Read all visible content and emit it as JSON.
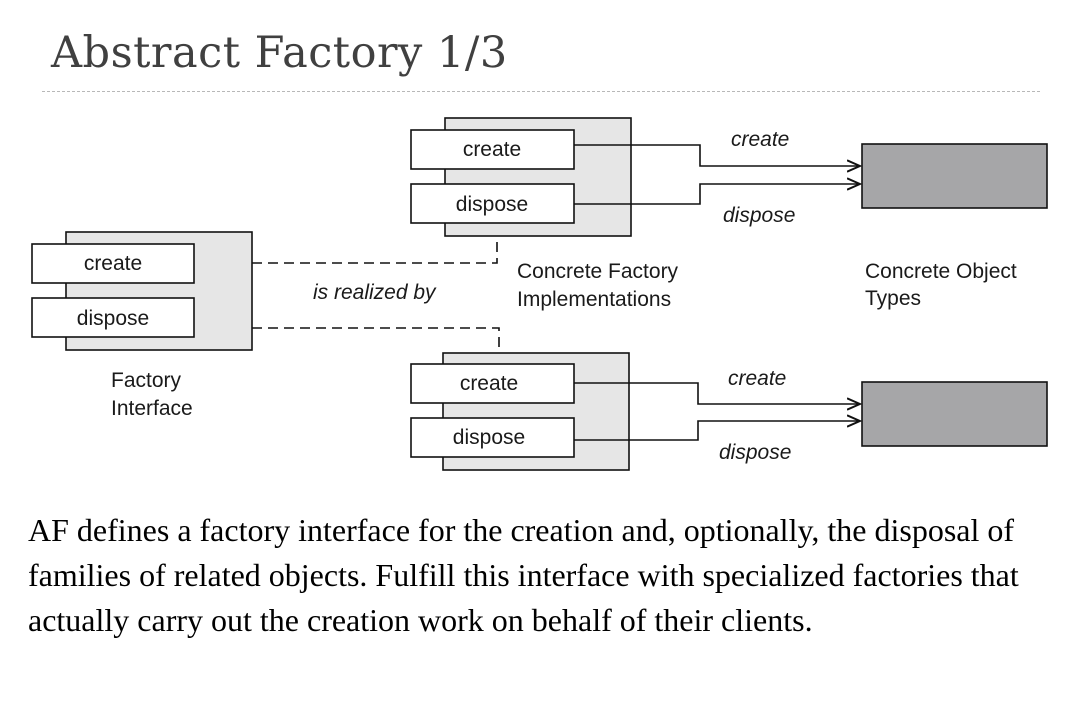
{
  "title": "Abstract Factory 1/3",
  "diagram": {
    "factory_interface": {
      "create_label": "create",
      "dispose_label": "dispose",
      "caption_line1": "Factory",
      "caption_line2": "Interface"
    },
    "realized_by_label": "is realized by",
    "concrete_factory_top": {
      "create_label": "create",
      "dispose_label": "dispose"
    },
    "concrete_factory_bottom": {
      "create_label": "create",
      "dispose_label": "dispose"
    },
    "concrete_factory_caption_line1": "Concrete Factory",
    "concrete_factory_caption_line2": "Implementations",
    "concrete_object_caption_line1": "Concrete Object",
    "concrete_object_caption_line2": "Types",
    "arrow_top_create": "create",
    "arrow_top_dispose": "dispose",
    "arrow_bottom_create": "create",
    "arrow_bottom_dispose": "dispose",
    "colors": {
      "panel_fill": "#e6e6e6",
      "object_fill": "#a6a6a8",
      "stroke": "#111111"
    }
  },
  "body_text": "AF defines a factory interface for the creation and, optionally, the disposal of families of related objects. Fulfill this interface with specialized factories that actually carry out the creation work on behalf of their clients."
}
